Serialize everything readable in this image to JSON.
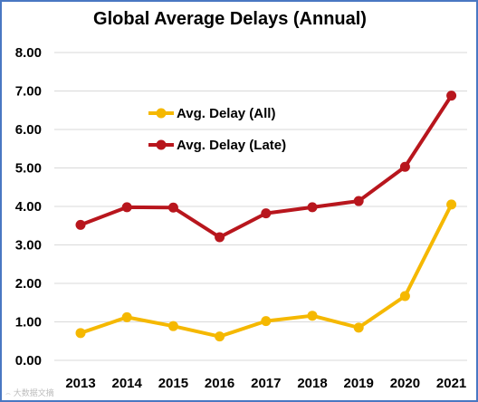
{
  "chart_data": {
    "type": "line",
    "title": "Global Average Delays (Annual)",
    "categories": [
      "2013",
      "2014",
      "2015",
      "2016",
      "2017",
      "2018",
      "2019",
      "2020",
      "2021"
    ],
    "ylim": [
      0,
      8
    ],
    "yticks": [
      "0.00",
      "1.00",
      "2.00",
      "3.00",
      "4.00",
      "5.00",
      "6.00",
      "7.00",
      "8.00"
    ],
    "grid": true,
    "legend": "upper-left (inside plot)",
    "series": [
      {
        "name": "Avg. Delay (All)",
        "color": "#f5b800",
        "values": [
          0.71,
          1.12,
          0.89,
          0.62,
          1.02,
          1.16,
          0.85,
          1.67,
          4.05
        ]
      },
      {
        "name": "Avg. Delay (Late)",
        "color": "#b8161d",
        "values": [
          3.52,
          3.98,
          3.97,
          3.2,
          3.82,
          3.98,
          4.14,
          5.03,
          6.88
        ]
      }
    ],
    "watermark": "⌢ 大数据文摘"
  }
}
